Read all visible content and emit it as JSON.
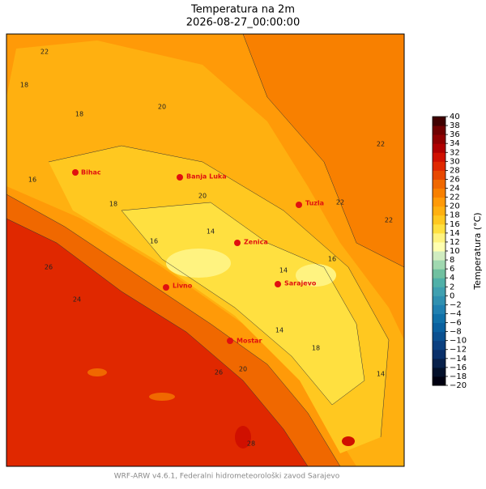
{
  "title": "Temperatura na 2m",
  "subtitle": "2026-08-27_00:00:00",
  "footer": "WRF-ARW v4.6.1, Federalni hidrometeorološki zavod Sarajevo",
  "cities": [
    "Bihac",
    "Banja Luka",
    "Tuzla",
    "Zenica",
    "Livno",
    "Sarajevo",
    "Mostar"
  ],
  "contour_labels": [
    22,
    18,
    20,
    18,
    22,
    16,
    18,
    20,
    22,
    16,
    14,
    14,
    16,
    14,
    18,
    24,
    26,
    28,
    26,
    20,
    14,
    22
  ],
  "colorbar": {
    "label": "Temperatura (°C)",
    "ticks": [
      {
        "value": -20,
        "label": "−20"
      },
      {
        "value": -18,
        "label": "−18"
      },
      {
        "value": -16,
        "label": "−16"
      },
      {
        "value": -14,
        "label": "−14"
      },
      {
        "value": -12,
        "label": "−12"
      },
      {
        "value": -10,
        "label": "−10"
      },
      {
        "value": -8,
        "label": "−8"
      },
      {
        "value": -6,
        "label": "−6"
      },
      {
        "value": -4,
        "label": "−4"
      },
      {
        "value": -2,
        "label": "−2"
      },
      0,
      2,
      4,
      6,
      8,
      10,
      12,
      14,
      16,
      18,
      20,
      22,
      24,
      26,
      28,
      30,
      32,
      34,
      36,
      38,
      40
    ],
    "colors": [
      "#000010",
      "#03102a",
      "#08204a",
      "#0a306a",
      "#0b4080",
      "#0b5090",
      "#0a609f",
      "#1070a8",
      "#2080b0",
      "#3090b0",
      "#40a0b0",
      "#50b0a8",
      "#70c0a0",
      "#a0d8b0",
      "#d0ecc0",
      "#ffffb0",
      "#fff380",
      "#ffe040",
      "#ffc820",
      "#ffb010",
      "#ff9a08",
      "#f88000",
      "#f06800",
      "#e84800",
      "#e02800",
      "#d01000",
      "#b00000",
      "#900000",
      "#700000",
      "#400000"
    ]
  }
}
